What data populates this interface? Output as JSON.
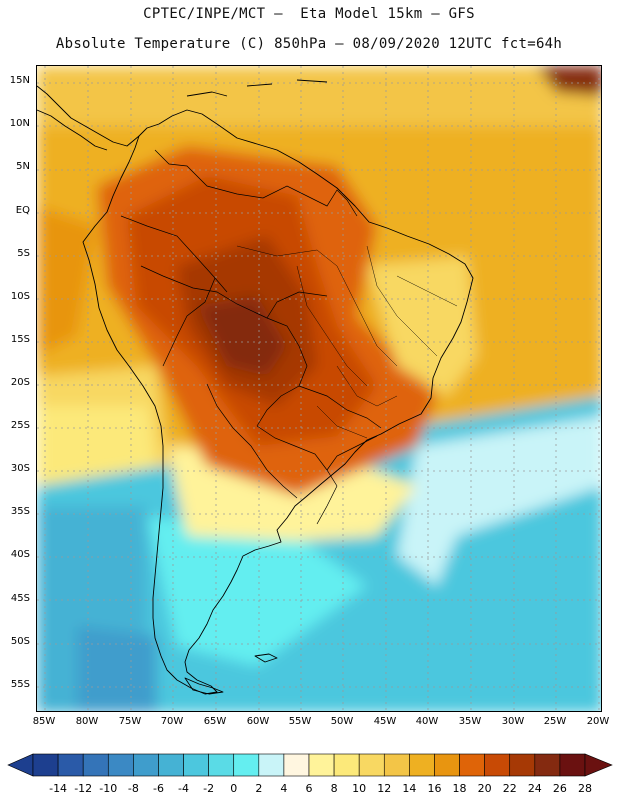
{
  "header": {
    "line1": "CPTEC/INPE/MCT –  Eta Model 15km – GFS",
    "line2": "Absolute Temperature (C) 850hPa – 08/09/2020 12UTC fct=64h"
  },
  "map": {
    "latitude_labels": [
      "15N",
      "10N",
      "5N",
      "EQ",
      "5S",
      "10S",
      "15S",
      "20S",
      "25S",
      "30S",
      "35S",
      "40S",
      "45S",
      "50S",
      "55S"
    ],
    "longitude_labels": [
      "85W",
      "80W",
      "75W",
      "70W",
      "65W",
      "60W",
      "55W",
      "50W",
      "45W",
      "40W",
      "35W",
      "30W",
      "25W",
      "20W"
    ]
  },
  "colorbar": {
    "labels": [
      "-14",
      "-12",
      "-10",
      "-8",
      "-6",
      "-4",
      "-2",
      "0",
      "2",
      "4",
      "6",
      "8",
      "10",
      "12",
      "14",
      "16",
      "18",
      "20",
      "22",
      "24",
      "26",
      "28"
    ],
    "colors": [
      "#1d3f8f",
      "#2a5aa8",
      "#3474b8",
      "#3b89c4",
      "#3f9dcc",
      "#45b2d4",
      "#4cc7de",
      "#5adbe6",
      "#64eef0",
      "#c9f4f8",
      "#fff6e0",
      "#fff39a",
      "#fce97a",
      "#f8d862",
      "#f3c547",
      "#eeb022",
      "#e89510",
      "#df6408",
      "#c84a05",
      "#a63905",
      "#842a10",
      "#6a1110"
    ]
  }
}
